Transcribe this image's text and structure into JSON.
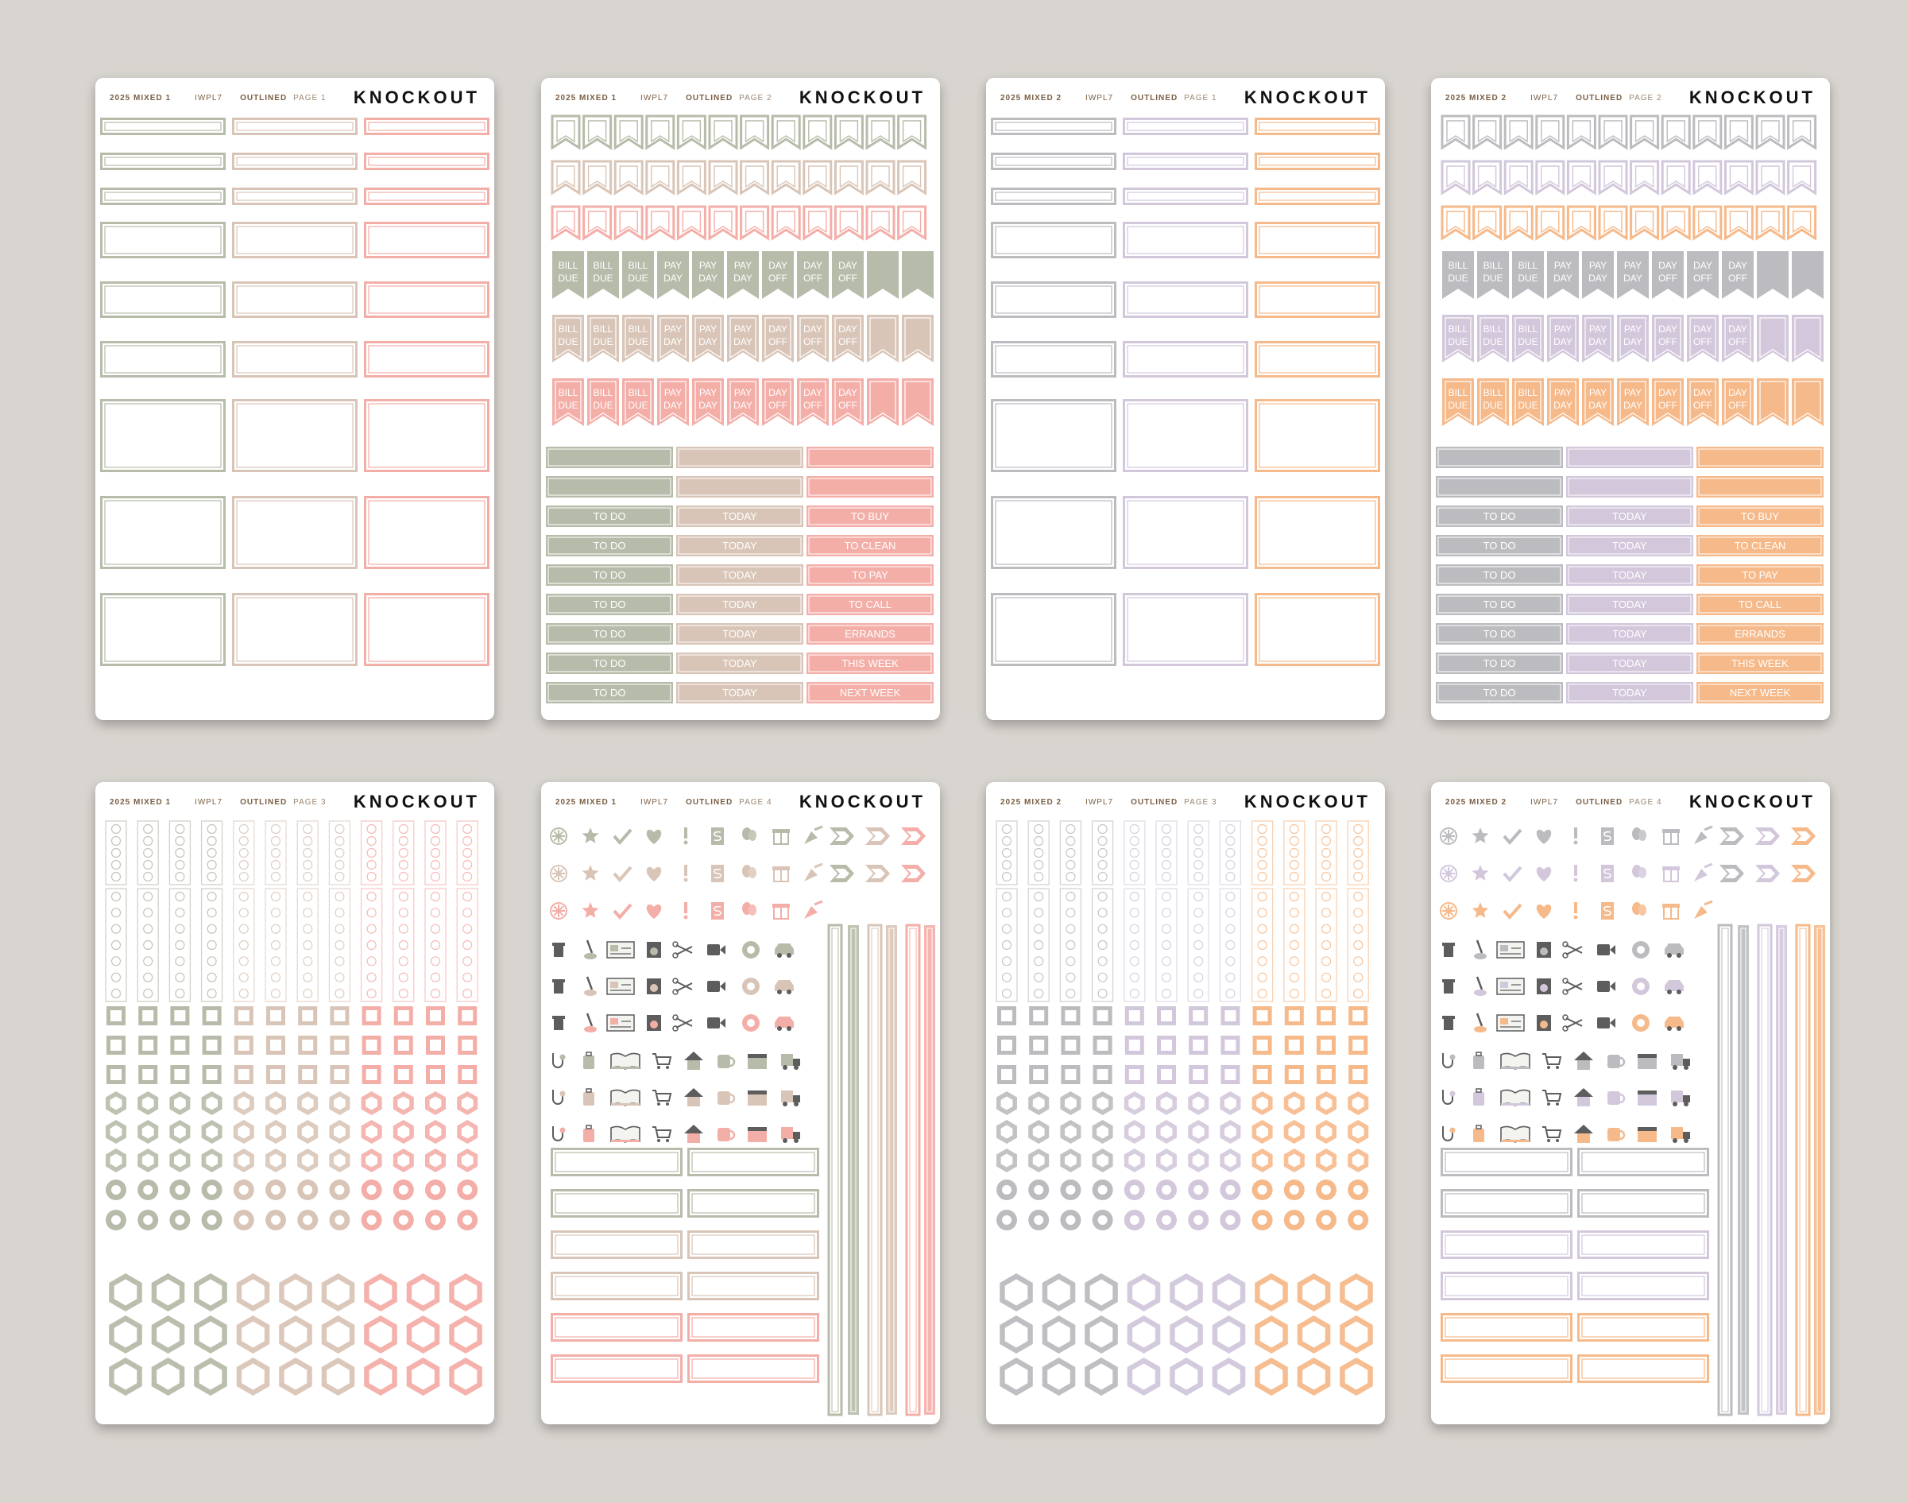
{
  "brand": "KNOCKOUT",
  "colors": {
    "sage": "#b6bca9",
    "taupe": "#d9c5b7",
    "pink": "#f4aea8",
    "gray": "#bcbcc0",
    "lilac": "#d2c7db",
    "peach": "#f6b98a"
  },
  "labels": {
    "bill": [
      "BILL",
      "DUE"
    ],
    "pay": [
      "PAY",
      "DAY"
    ],
    "dayoff": [
      "DAY",
      "OFF"
    ],
    "todo": "TO DO",
    "today": "TODAY",
    "col3": [
      "TO BUY",
      "TO CLEAN",
      "TO PAY",
      "TO CALL",
      "ERRANDS",
      "THIS WEEK",
      "NEXT WEEK"
    ]
  },
  "icons": [
    "sparkle-icon",
    "star-icon",
    "check-icon",
    "heart-icon",
    "exclamation-icon",
    "dollar-icon",
    "balloon-icon",
    "gift-icon",
    "party-popper-icon",
    "arrow-chevron-icon",
    "trash-can-icon",
    "vacuum-icon",
    "cash-icon",
    "washing-machine-icon",
    "scissors-icon",
    "video-camera-icon",
    "telephone-icon",
    "car-icon",
    "stethoscope-icon",
    "luggage-icon",
    "open-book-icon",
    "shopping-cart-icon",
    "house-icon",
    "coffee-mug-icon",
    "calendar-icon",
    "delivery-truck-icon"
  ],
  "sheets": [
    {
      "id": "s1",
      "set": "2025 MIXED 1",
      "code": "IWPL7",
      "style": "OUTLINED",
      "page": "PAGE 1",
      "layout": "boxes",
      "palette": [
        "sage",
        "taupe",
        "pink"
      ]
    },
    {
      "id": "s2",
      "set": "2025 MIXED 1",
      "code": "IWPL7",
      "style": "OUTLINED",
      "page": "PAGE 2",
      "layout": "flags",
      "palette": [
        "sage",
        "taupe",
        "pink"
      ]
    },
    {
      "id": "s3",
      "set": "2025 MIXED 2",
      "code": "IWPL7",
      "style": "OUTLINED",
      "page": "PAGE 1",
      "layout": "boxes",
      "palette": [
        "gray",
        "lilac",
        "peach"
      ]
    },
    {
      "id": "s4",
      "set": "2025 MIXED 2",
      "code": "IWPL7",
      "style": "OUTLINED",
      "page": "PAGE 2",
      "layout": "flags",
      "palette": [
        "gray",
        "lilac",
        "peach"
      ]
    },
    {
      "id": "s5",
      "set": "2025 MIXED 1",
      "code": "IWPL7",
      "style": "OUTLINED",
      "page": "PAGE 3",
      "layout": "shapes",
      "palette": [
        "sage",
        "taupe",
        "pink"
      ]
    },
    {
      "id": "s6",
      "set": "2025 MIXED 1",
      "code": "IWPL7",
      "style": "OUTLINED",
      "page": "PAGE 4",
      "layout": "icons",
      "palette": [
        "sage",
        "taupe",
        "pink"
      ]
    },
    {
      "id": "s7",
      "set": "2025 MIXED 2",
      "code": "IWPL7",
      "style": "OUTLINED",
      "page": "PAGE 3",
      "layout": "shapes",
      "palette": [
        "gray",
        "lilac",
        "peach"
      ]
    },
    {
      "id": "s8",
      "set": "2025 MIXED 2",
      "code": "IWPL7",
      "style": "OUTLINED",
      "page": "PAGE 4",
      "layout": "icons",
      "palette": [
        "gray",
        "lilac",
        "peach"
      ]
    }
  ]
}
